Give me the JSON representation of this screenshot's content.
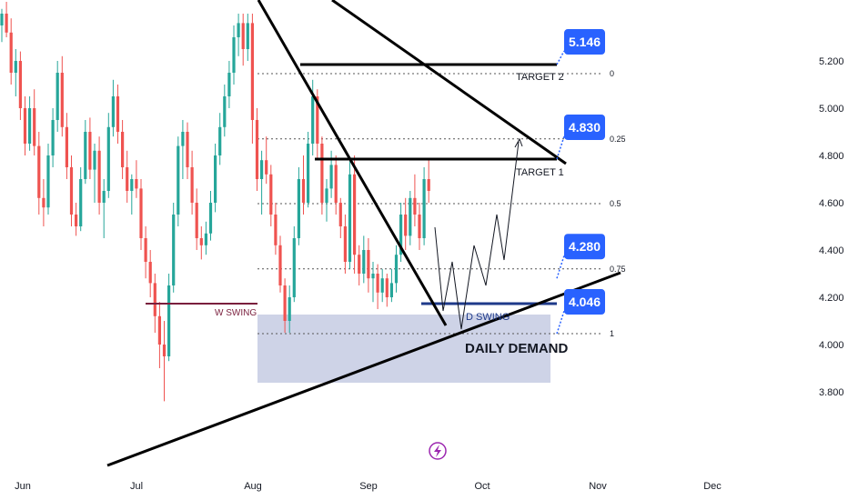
{
  "chart_data": {
    "type": "candlestick",
    "x_ticks": [
      "Jun",
      "Jul",
      "Aug",
      "Sep",
      "Oct",
      "Nov",
      "Dec"
    ],
    "y_ticks": [
      "3.800",
      "4.000",
      "4.200",
      "4.400",
      "4.600",
      "4.800",
      "5.000",
      "5.200"
    ],
    "ylim": [
      3.75,
      5.4
    ],
    "grid": false,
    "colors": {
      "up": "#26a69a",
      "down": "#ef5350",
      "zone": "#c5cbe3",
      "badge": "#2962ff",
      "w_swing": "#7a1f3d",
      "d_swing": "#1e3a8a"
    },
    "fib_levels": [
      {
        "label": "0",
        "value": 5.146
      },
      {
        "label": "0.25",
        "value": 4.87
      },
      {
        "label": "0.5",
        "value": 4.596
      },
      {
        "label": "0.75",
        "value": 4.32
      },
      {
        "label": "1",
        "value": 4.046
      }
    ],
    "price_badges": [
      "5.146",
      "4.830",
      "4.280",
      "4.046"
    ],
    "annotations": {
      "target1": "TARGET 1",
      "target2": "TARGET 2",
      "w_swing": "W SWING",
      "d_swing": "D SWING",
      "demand": "DAILY DEMAND"
    },
    "candles": [
      [
        5.35,
        5.42,
        5.28,
        5.4
      ],
      [
        5.4,
        5.45,
        5.3,
        5.32
      ],
      [
        5.32,
        5.38,
        5.1,
        5.15
      ],
      [
        5.15,
        5.25,
        5.05,
        5.2
      ],
      [
        5.2,
        5.24,
        4.95,
        5.0
      ],
      [
        5.0,
        5.05,
        4.8,
        4.85
      ],
      [
        4.85,
        5.05,
        4.82,
        5.0
      ],
      [
        5.0,
        5.08,
        4.8,
        4.84
      ],
      [
        4.84,
        4.9,
        4.55,
        4.62
      ],
      [
        4.62,
        4.7,
        4.5,
        4.58
      ],
      [
        4.58,
        4.85,
        4.55,
        4.8
      ],
      [
        4.8,
        5.0,
        4.75,
        4.95
      ],
      [
        4.95,
        5.2,
        4.9,
        5.15
      ],
      [
        5.15,
        5.22,
        4.88,
        4.92
      ],
      [
        4.92,
        4.98,
        4.7,
        4.75
      ],
      [
        4.75,
        4.8,
        4.5,
        4.55
      ],
      [
        4.55,
        4.6,
        4.46,
        4.5
      ],
      [
        4.5,
        4.75,
        4.48,
        4.7
      ],
      [
        4.7,
        4.95,
        4.68,
        4.9
      ],
      [
        4.9,
        4.96,
        4.7,
        4.74
      ],
      [
        4.74,
        4.85,
        4.6,
        4.82
      ],
      [
        4.82,
        4.88,
        4.55,
        4.6
      ],
      [
        4.6,
        4.7,
        4.45,
        4.65
      ],
      [
        4.65,
        4.98,
        4.62,
        4.92
      ],
      [
        4.92,
        5.12,
        4.88,
        5.05
      ],
      [
        5.05,
        5.1,
        4.85,
        4.9
      ],
      [
        4.9,
        4.95,
        4.7,
        4.75
      ],
      [
        4.75,
        4.82,
        4.6,
        4.65
      ],
      [
        4.65,
        4.72,
        4.55,
        4.7
      ],
      [
        4.7,
        4.78,
        4.62,
        4.66
      ],
      [
        4.66,
        4.7,
        4.4,
        4.45
      ],
      [
        4.45,
        4.5,
        4.28,
        4.35
      ],
      [
        4.35,
        4.4,
        4.2,
        4.26
      ],
      [
        4.26,
        4.3,
        4.05,
        4.12
      ],
      [
        4.12,
        4.18,
        3.9,
        4.0
      ],
      [
        4.0,
        4.1,
        3.76,
        3.95
      ],
      [
        3.95,
        4.3,
        3.93,
        4.25
      ],
      [
        4.25,
        4.6,
        4.22,
        4.55
      ],
      [
        4.55,
        4.88,
        4.5,
        4.84
      ],
      [
        4.84,
        4.95,
        4.7,
        4.9
      ],
      [
        4.9,
        4.94,
        4.7,
        4.75
      ],
      [
        4.75,
        4.82,
        4.55,
        4.6
      ],
      [
        4.6,
        4.66,
        4.4,
        4.45
      ],
      [
        4.45,
        4.5,
        4.36,
        4.42
      ],
      [
        4.42,
        4.52,
        4.38,
        4.47
      ],
      [
        4.47,
        4.65,
        4.44,
        4.6
      ],
      [
        4.6,
        4.85,
        4.56,
        4.8
      ],
      [
        4.8,
        4.98,
        4.76,
        4.92
      ],
      [
        4.92,
        5.1,
        4.88,
        5.05
      ],
      [
        5.05,
        5.2,
        5.0,
        5.15
      ],
      [
        5.15,
        5.35,
        5.1,
        5.3
      ],
      [
        5.3,
        5.4,
        5.22,
        5.36
      ],
      [
        5.36,
        5.4,
        5.18,
        5.25
      ],
      [
        5.25,
        5.4,
        5.2,
        5.36
      ],
      [
        5.36,
        5.4,
        4.85,
        4.95
      ],
      [
        4.95,
        5.0,
        4.65,
        4.7
      ],
      [
        4.7,
        4.82,
        4.55,
        4.78
      ],
      [
        4.78,
        4.88,
        4.68,
        4.72
      ],
      [
        4.72,
        4.76,
        4.5,
        4.55
      ],
      [
        4.55,
        4.6,
        4.38,
        4.42
      ],
      [
        4.42,
        4.46,
        4.22,
        4.25
      ],
      [
        4.25,
        4.28,
        4.05,
        4.1
      ],
      [
        4.1,
        4.25,
        4.05,
        4.2
      ],
      [
        4.2,
        4.5,
        4.18,
        4.45
      ],
      [
        4.45,
        4.75,
        4.42,
        4.7
      ],
      [
        4.7,
        4.8,
        4.55,
        4.6
      ],
      [
        4.6,
        4.9,
        4.58,
        4.85
      ],
      [
        4.85,
        5.12,
        4.8,
        5.05
      ],
      [
        5.05,
        5.08,
        4.78,
        4.85
      ],
      [
        4.85,
        4.88,
        4.55,
        4.6
      ],
      [
        4.6,
        4.7,
        4.52,
        4.66
      ],
      [
        4.66,
        4.82,
        4.62,
        4.76
      ],
      [
        4.76,
        4.8,
        4.55,
        4.6
      ],
      [
        4.6,
        4.62,
        4.45,
        4.5
      ],
      [
        4.5,
        4.55,
        4.3,
        4.35
      ],
      [
        4.35,
        4.78,
        4.32,
        4.72
      ],
      [
        4.72,
        4.8,
        4.3,
        4.38
      ],
      [
        4.38,
        4.42,
        4.25,
        4.3
      ],
      [
        4.3,
        4.46,
        4.26,
        4.4
      ],
      [
        4.4,
        4.45,
        4.22,
        4.28
      ],
      [
        4.28,
        4.35,
        4.18,
        4.3
      ],
      [
        4.3,
        4.34,
        4.15,
        4.22
      ],
      [
        4.22,
        4.32,
        4.18,
        4.28
      ],
      [
        4.28,
        4.3,
        4.16,
        4.2
      ],
      [
        4.2,
        4.32,
        4.18,
        4.26
      ],
      [
        4.26,
        4.42,
        4.22,
        4.38
      ],
      [
        4.38,
        4.6,
        4.35,
        4.55
      ],
      [
        4.55,
        4.62,
        4.4,
        4.46
      ],
      [
        4.46,
        4.65,
        4.42,
        4.62
      ],
      [
        4.62,
        4.72,
        4.5,
        4.55
      ],
      [
        4.55,
        4.6,
        4.4,
        4.45
      ],
      [
        4.45,
        4.75,
        4.42,
        4.7
      ],
      [
        4.7,
        4.78,
        4.6,
        4.65
      ]
    ]
  }
}
